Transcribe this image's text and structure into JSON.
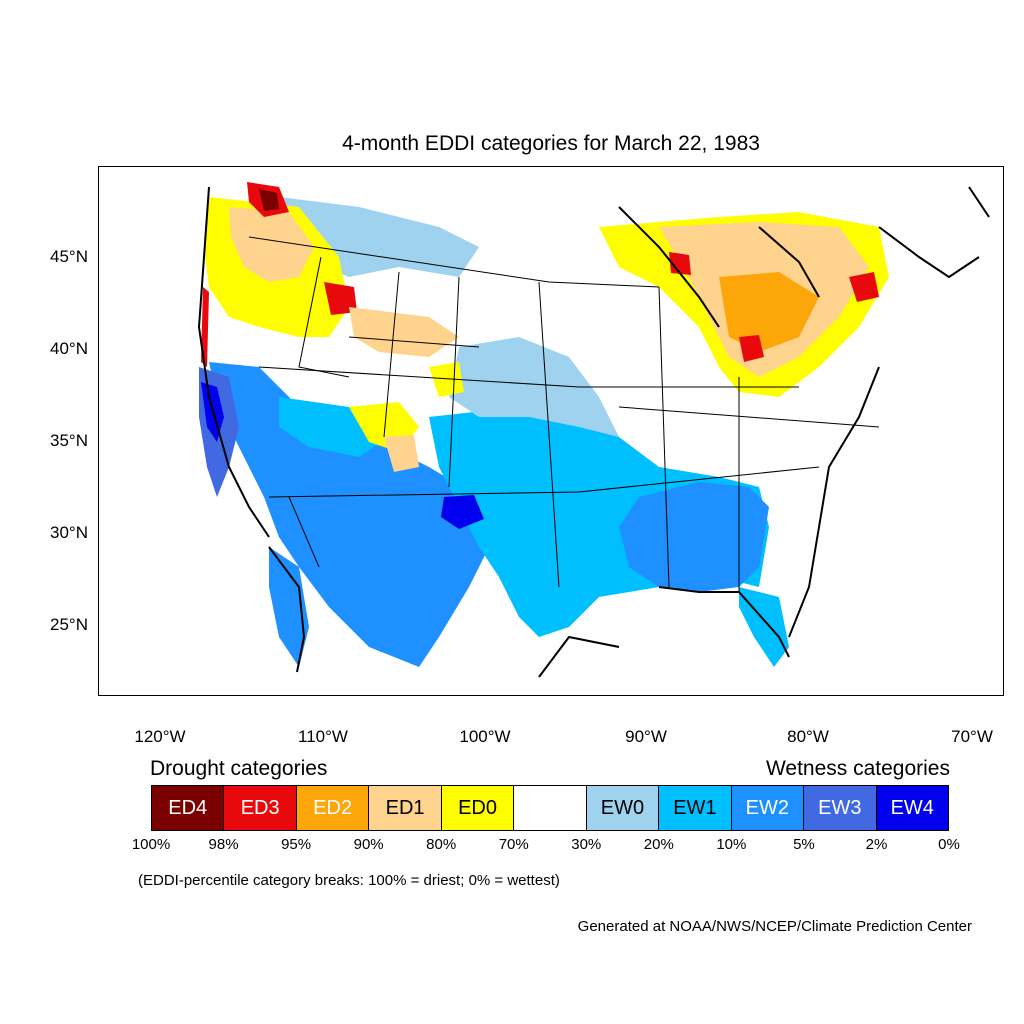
{
  "title": "4-month EDDI categories for March 22, 1983",
  "y_axis_labels": [
    "45°N",
    "40°N",
    "35°N",
    "30°N",
    "25°N"
  ],
  "x_axis_labels": [
    "120°W",
    "110°W",
    "100°W",
    "90°W",
    "80°W",
    "70°W"
  ],
  "legend": {
    "drought_heading": "Drought categories",
    "wetness_heading": "Wetness categories",
    "categories": [
      {
        "label": "ED4",
        "color": "#7a0000",
        "text_color": "#ffffff"
      },
      {
        "label": "ED3",
        "color": "#e8090c",
        "text_color": "#ffffff"
      },
      {
        "label": "ED2",
        "color": "#fca60a",
        "text_color": "#ffffff"
      },
      {
        "label": "ED1",
        "color": "#fdd38e",
        "text_color": "#000000"
      },
      {
        "label": "ED0",
        "color": "#fefe00",
        "text_color": "#000000"
      },
      {
        "label": "",
        "color": "#ffffff",
        "text_color": "#000000"
      },
      {
        "label": "EW0",
        "color": "#9ed2ee",
        "text_color": "#000000"
      },
      {
        "label": "EW1",
        "color": "#00bfff",
        "text_color": "#000000"
      },
      {
        "label": "EW2",
        "color": "#1e90ff",
        "text_color": "#ffffff"
      },
      {
        "label": "EW3",
        "color": "#4169e1",
        "text_color": "#ffffff"
      },
      {
        "label": "EW4",
        "color": "#0000ee",
        "text_color": "#ffffff"
      }
    ],
    "breaks": [
      "100%",
      "98%",
      "95%",
      "90%",
      "80%",
      "70%",
      "30%",
      "20%",
      "10%",
      "5%",
      "2%",
      "0%"
    ]
  },
  "note": "(EDDI-percentile category breaks: 100% = driest; 0% = wettest)",
  "credit": "Generated at NOAA/NWS/NCEP/Climate Prediction Center"
}
